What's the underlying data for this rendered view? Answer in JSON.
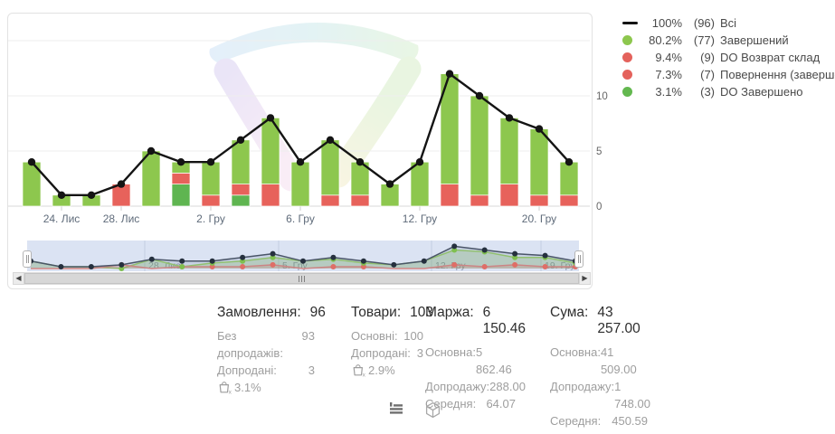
{
  "legend": {
    "items": [
      {
        "marker": "line",
        "color": "#141414",
        "percent": "100%",
        "count": "(96)",
        "label": "Всі"
      },
      {
        "marker": "dot",
        "color": "#8DC74E",
        "percent": "80.2%",
        "count": "(77)",
        "label": "Завершений"
      },
      {
        "marker": "dot",
        "color": "#E4625C",
        "percent": "9.4%",
        "count": "(9)",
        "label": "DO Возврат склад"
      },
      {
        "marker": "dot",
        "color": "#E4625C",
        "percent": "7.3%",
        "count": "(7)",
        "label": "Повернення (завершений)"
      },
      {
        "marker": "dot",
        "color": "#63B84F",
        "percent": "3.1%",
        "count": "(3)",
        "label": "DO Завершено"
      }
    ]
  },
  "chart_data": {
    "type": "bar",
    "subtype": "stacked-bars-with-total-line",
    "n_points": 19,
    "ylim": [
      0,
      15
    ],
    "ytick_labels": [
      "0",
      "5",
      "10"
    ],
    "yticks": [
      0,
      5,
      10
    ],
    "gridlines": [
      0,
      5,
      10,
      15
    ],
    "x_tick_labels": [
      {
        "index": 1,
        "label": "24. Лис"
      },
      {
        "index": 3,
        "label": "28. Лис"
      },
      {
        "index": 6,
        "label": "2. Гру"
      },
      {
        "index": 9,
        "label": "6. Гру"
      },
      {
        "index": 13,
        "label": "12. Гру"
      },
      {
        "index": 17,
        "label": "20. Гру"
      }
    ],
    "stack_order_bottom_to_top": [
      "do_zaversheno",
      "povernennia",
      "zavershenyi"
    ],
    "series": [
      {
        "id": "vsi",
        "name": "Всі",
        "type": "line",
        "color": "#141414",
        "values": [
          4,
          1,
          1,
          2,
          5,
          4,
          4,
          6,
          8,
          4,
          6,
          4,
          2,
          4,
          12,
          10,
          8,
          7,
          4
        ]
      },
      {
        "id": "zavershenyi",
        "name": "Завершений",
        "type": "bar",
        "color": "#8DC74E",
        "values": [
          4,
          1,
          1,
          0,
          5,
          1,
          3,
          4,
          6,
          4,
          5,
          3,
          2,
          4,
          10,
          9,
          6,
          6,
          3
        ]
      },
      {
        "id": "povernennia",
        "name": "Повернення / DO Возврат склад",
        "type": "bar",
        "color": "#E7625B",
        "values": [
          0,
          0,
          0,
          2,
          0,
          1,
          1,
          1,
          2,
          0,
          1,
          1,
          0,
          0,
          2,
          1,
          2,
          1,
          1
        ]
      },
      {
        "id": "do_zaversheno",
        "name": "DO Завершено",
        "type": "bar",
        "color": "#5FB551",
        "values": [
          0,
          0,
          0,
          0,
          0,
          2,
          0,
          1,
          0,
          0,
          0,
          0,
          0,
          0,
          0,
          0,
          0,
          0,
          0
        ]
      }
    ],
    "navigator": {
      "date_labels": [
        "28. Лис",
        "5. Гру",
        "12. Гру",
        "19. Гру"
      ]
    }
  },
  "stats": {
    "columns": [
      {
        "id": "orders",
        "title": "Замовлення:",
        "value": "96",
        "rows": [
          {
            "label": "Без допродажів:",
            "value": "93"
          },
          {
            "label": "Допродані:",
            "value": "3"
          }
        ],
        "basket_percent": "3.1%"
      },
      {
        "id": "goods",
        "title": "Товари:",
        "value": "103",
        "rows": [
          {
            "label": "Основні:",
            "value": "100"
          },
          {
            "label": "Допродані:",
            "value": "3"
          }
        ],
        "basket_percent": "2.9%"
      },
      {
        "id": "margin",
        "title": "Маржа:",
        "value": "6 150.46",
        "rows": [
          {
            "label": "Основна:",
            "value": "5 862.46"
          },
          {
            "label": "Допродажу:",
            "value": "288.00"
          },
          {
            "label": "Середня:",
            "value": "64.07"
          }
        ]
      },
      {
        "id": "sum",
        "title": "Сума:",
        "value": "43 257.00",
        "rows": [
          {
            "label": "Основна:",
            "value": "41 509.00"
          },
          {
            "label": "Допродажу:",
            "value": "1 748.00"
          },
          {
            "label": "Середня:",
            "value": "450.59"
          }
        ]
      }
    ]
  },
  "colors": {
    "bar_green": "#8DC74E",
    "bar_red": "#E7625B",
    "bar_dark_green": "#5FB551",
    "total_line": "#141414",
    "grid": "#ededed",
    "axis_text": "#666666",
    "navigator_bg": "#dbe3f3",
    "navigator_grid": "#c3cdе0"
  }
}
